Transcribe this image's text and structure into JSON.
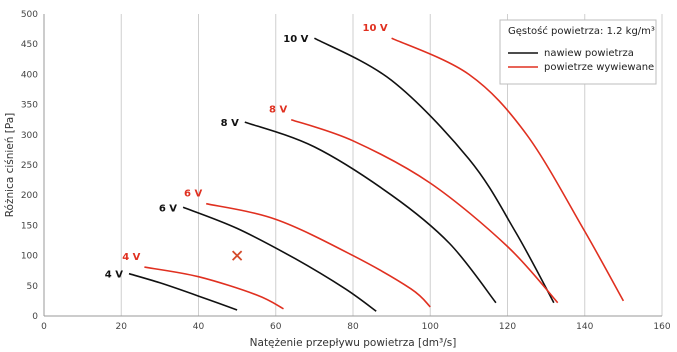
{
  "chart_data": {
    "type": "line",
    "xlabel": "Natężenie przepływu powietrza [dm³/s]",
    "ylabel": "Różnica ciśnień [Pa]",
    "xlim": [
      0,
      160
    ],
    "ylim": [
      0,
      500
    ],
    "x_ticks": [
      "0",
      "20",
      "40",
      "60",
      "80",
      "100",
      "120",
      "140",
      "160"
    ],
    "y_ticks": [
      "0",
      "50",
      "100",
      "150",
      "200",
      "250",
      "300",
      "350",
      "400",
      "450",
      "500"
    ],
    "grid": "vertical",
    "legend": {
      "placement": "top-right",
      "title": "Gęstość powietrza: 1.2 kg/m³",
      "entries": [
        {
          "label": "nawiew powietrza",
          "color": "#111111"
        },
        {
          "label": "powietrze wywiewane",
          "color": "#e03020"
        }
      ]
    },
    "colors": {
      "supply": "#111111",
      "exhaust": "#e03020",
      "grid": "#cfcfcf",
      "marker": "#d44a2a"
    },
    "series": [
      {
        "voltage": "4 V",
        "group": "supply",
        "points": [
          [
            22,
            70
          ],
          [
            30,
            55
          ],
          [
            40,
            33
          ],
          [
            50,
            10
          ]
        ]
      },
      {
        "voltage": "6 V",
        "group": "supply",
        "points": [
          [
            36,
            180
          ],
          [
            50,
            145
          ],
          [
            65,
            95
          ],
          [
            78,
            45
          ],
          [
            86,
            8
          ]
        ]
      },
      {
        "voltage": "8 V",
        "group": "supply",
        "points": [
          [
            52,
            321
          ],
          [
            70,
            280
          ],
          [
            90,
            200
          ],
          [
            105,
            120
          ],
          [
            117,
            22
          ]
        ]
      },
      {
        "voltage": "10 V",
        "group": "supply",
        "points": [
          [
            70,
            460
          ],
          [
            90,
            390
          ],
          [
            110,
            260
          ],
          [
            122,
            140
          ],
          [
            132,
            22
          ]
        ]
      },
      {
        "voltage": "4 V",
        "group": "exhaust",
        "points": [
          [
            26,
            81
          ],
          [
            40,
            65
          ],
          [
            55,
            35
          ],
          [
            62,
            12
          ]
        ]
      },
      {
        "voltage": "6 V",
        "group": "exhaust",
        "points": [
          [
            42,
            186
          ],
          [
            60,
            160
          ],
          [
            80,
            100
          ],
          [
            95,
            45
          ],
          [
            100,
            15
          ]
        ]
      },
      {
        "voltage": "8 V",
        "group": "exhaust",
        "points": [
          [
            64,
            325
          ],
          [
            80,
            290
          ],
          [
            100,
            220
          ],
          [
            120,
            115
          ],
          [
            133,
            22
          ]
        ]
      },
      {
        "voltage": "10 V",
        "group": "exhaust",
        "points": [
          [
            90,
            460
          ],
          [
            110,
            400
          ],
          [
            125,
            300
          ],
          [
            140,
            140
          ],
          [
            150,
            25
          ]
        ]
      }
    ],
    "annotations": [
      {
        "type": "cross",
        "x": 50,
        "y": 100,
        "color": "#d44a2a"
      }
    ]
  }
}
